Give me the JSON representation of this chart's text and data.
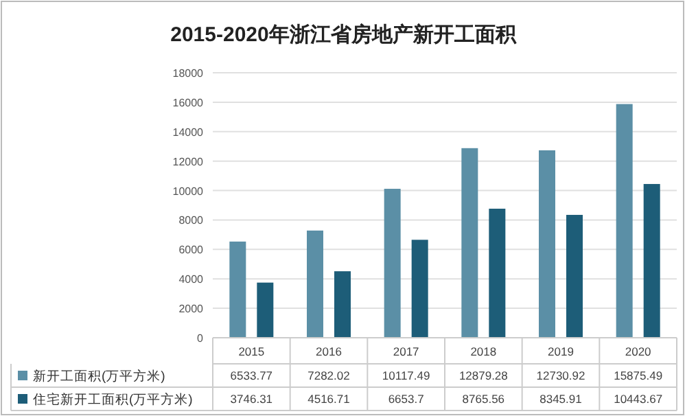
{
  "chart_data": {
    "type": "bar",
    "title": "2015-2020年浙江省房地产新开工面积",
    "categories": [
      "2015",
      "2016",
      "2017",
      "2018",
      "2019",
      "2020"
    ],
    "series": [
      {
        "name": "新开工面积(万平方米)",
        "color": "#5b8fa6",
        "values": [
          6533.77,
          7282.02,
          10117.49,
          12879.28,
          12730.92,
          15875.49
        ]
      },
      {
        "name": "住宅新开工面积(万平方米)",
        "color": "#1d5d78",
        "values": [
          3746.31,
          4516.71,
          6653.7,
          8765.56,
          8345.91,
          10443.67
        ]
      }
    ],
    "ylim": [
      0,
      18000
    ],
    "yticks": [
      0,
      2000,
      4000,
      6000,
      8000,
      10000,
      12000,
      14000,
      16000,
      18000
    ],
    "grid": "y",
    "legend": "bottom",
    "data_labels": true
  }
}
